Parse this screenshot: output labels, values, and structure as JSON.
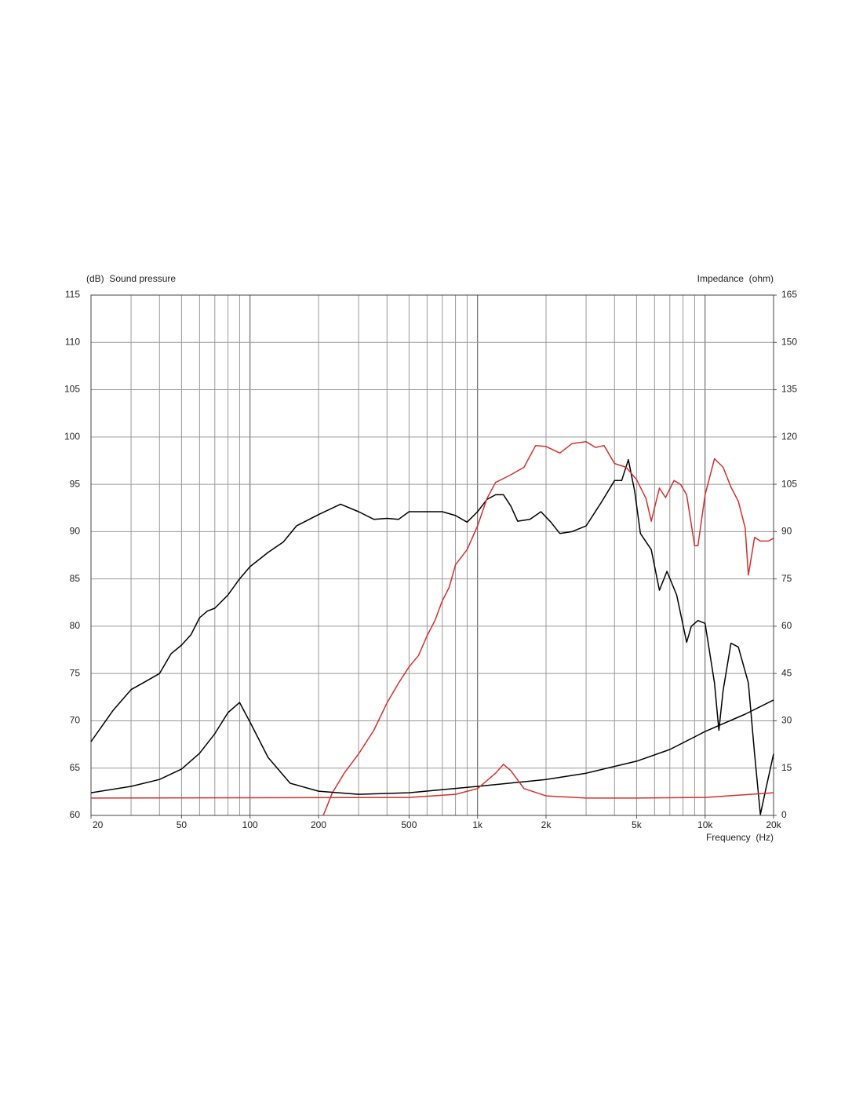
{
  "chart_data": {
    "type": "line",
    "ylabel": "(dB)  Sound pressure",
    "y2label": "Impedance  (ohm)",
    "xlabel": "Frequency  (Hz)",
    "xscale": "log",
    "xlim": [
      20,
      20000
    ],
    "ylim": [
      60,
      115
    ],
    "y2lim": [
      0,
      165
    ],
    "xticks": [
      20,
      50,
      100,
      200,
      500,
      {
        "value": 1000,
        "label": "1k"
      },
      {
        "value": 2000,
        "label": "2k"
      },
      {
        "value": 5000,
        "label": "5k"
      },
      {
        "value": 10000,
        "label": "10k"
      },
      {
        "value": 20000,
        "label": "20k"
      }
    ],
    "xgrid": [
      20,
      30,
      40,
      50,
      60,
      70,
      80,
      90,
      100,
      200,
      300,
      400,
      500,
      600,
      700,
      800,
      900,
      1000,
      2000,
      3000,
      4000,
      5000,
      6000,
      7000,
      8000,
      9000,
      10000,
      20000
    ],
    "yticks": [
      60,
      65,
      70,
      75,
      80,
      85,
      90,
      95,
      100,
      105,
      110,
      115
    ],
    "y2ticks": [
      0,
      15,
      30,
      45,
      60,
      75,
      90,
      105,
      120,
      135,
      150,
      165
    ],
    "grid": true,
    "series": [
      {
        "color": "#000000",
        "axis": "y",
        "x": [
          20,
          25,
          30,
          35,
          40,
          45,
          50,
          55,
          60,
          65,
          70,
          80,
          90,
          100,
          120,
          140,
          160,
          200,
          250,
          300,
          350,
          400,
          450,
          500,
          600,
          700,
          800,
          900,
          1000,
          1100,
          1200,
          1300,
          1400,
          1500,
          1700,
          1900,
          2100,
          2300,
          2600,
          3000,
          3500,
          4000,
          4300,
          4600,
          4900,
          5200,
          5800,
          6300,
          6800,
          7500,
          8300,
          8700,
          9300,
          10000,
          11000,
          11500,
          12000,
          13000,
          14000,
          15500,
          16500,
          17500,
          18500,
          20000
        ],
        "values": [
          67.8,
          71.1,
          73.3,
          74.2,
          75.0,
          77.1,
          78.0,
          79.1,
          80.9,
          81.6,
          81.9,
          83.3,
          85.0,
          86.3,
          87.8,
          88.9,
          90.6,
          91.8,
          92.9,
          92.1,
          91.3,
          91.4,
          91.3,
          92.1,
          92.1,
          92.1,
          91.7,
          91.0,
          92.1,
          93.4,
          93.9,
          93.9,
          92.7,
          91.1,
          91.3,
          92.1,
          91.0,
          89.8,
          90.0,
          90.6,
          93.1,
          95.4,
          95.4,
          97.6,
          94.3,
          89.8,
          88.1,
          83.8,
          85.8,
          83.3,
          78.3,
          80.0,
          80.6,
          80.3,
          74.0,
          69.0,
          73.2,
          78.2,
          77.8,
          74.0,
          66.5,
          60.1,
          62.8,
          66.5
        ]
      },
      {
        "color": "#d0312d",
        "axis": "y",
        "x": [
          210,
          230,
          260,
          300,
          350,
          400,
          450,
          500,
          550,
          600,
          650,
          700,
          750,
          800,
          900,
          1000,
          1100,
          1200,
          1400,
          1600,
          1800,
          2000,
          2300,
          2600,
          3000,
          3300,
          3600,
          4000,
          4500,
          5000,
          5500,
          5800,
          6300,
          6700,
          7300,
          7800,
          8300,
          9000,
          9300,
          10000,
          11000,
          12000,
          13000,
          14000,
          15000,
          15500,
          16500,
          17500,
          19000,
          20000
        ],
        "values": [
          60.0,
          62.4,
          64.5,
          66.5,
          69.0,
          71.9,
          74.0,
          75.7,
          76.9,
          79.0,
          80.6,
          82.7,
          84.1,
          86.5,
          88.1,
          90.6,
          93.5,
          95.2,
          96.0,
          96.8,
          99.1,
          99.0,
          98.3,
          99.3,
          99.5,
          98.9,
          99.1,
          97.2,
          96.8,
          95.5,
          93.5,
          91.1,
          94.6,
          93.6,
          95.4,
          95.0,
          93.9,
          88.5,
          88.5,
          93.9,
          97.7,
          96.8,
          94.7,
          93.2,
          90.4,
          85.4,
          89.4,
          89.0,
          89.0,
          89.3
        ]
      },
      {
        "color": "#000000",
        "axis": "y2",
        "x": [
          20,
          30,
          40,
          50,
          60,
          70,
          80,
          90,
          100,
          120,
          150,
          200,
          300,
          500,
          1000,
          2000,
          3000,
          5000,
          7000,
          10000,
          15000,
          20000
        ],
        "values": [
          7.2,
          9.2,
          11.4,
          14.7,
          19.7,
          25.9,
          32.6,
          35.8,
          29.6,
          18.4,
          10.2,
          7.7,
          6.7,
          7.2,
          9.2,
          11.4,
          13.4,
          17.2,
          20.9,
          26.6,
          32.1,
          36.6
        ]
      },
      {
        "color": "#d0312d",
        "axis": "y2",
        "x": [
          20,
          500,
          800,
          1000,
          1200,
          1300,
          1400,
          1600,
          2000,
          3000,
          5000,
          10000,
          20000
        ],
        "values": [
          5.5,
          5.7,
          6.7,
          8.5,
          13.4,
          16.2,
          14.2,
          8.5,
          6.2,
          5.5,
          5.5,
          5.7,
          7.2
        ]
      }
    ]
  }
}
